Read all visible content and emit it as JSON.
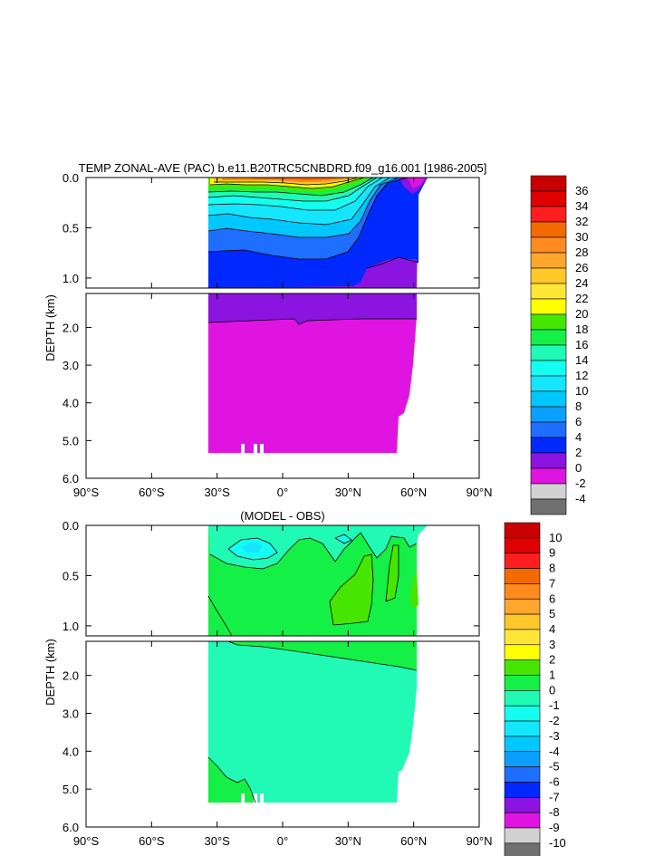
{
  "chart_data": [
    {
      "type": "contour",
      "title": "TEMP ZONAL-AVE (PAC) b.e11.B20TRC5CNBDRD.f09_g16.001 [1986-2005]",
      "xlabel": "",
      "ylabel": "DEPTH (km)",
      "x_ticks": [
        "90°S",
        "60°S",
        "30°S",
        "0°",
        "30°N",
        "60°N",
        "90°N"
      ],
      "x_range": [
        -90,
        90
      ],
      "upper_panel": {
        "y_range_km": [
          0.0,
          1.1
        ],
        "y_ticks": [
          "0.0",
          "0.5",
          "1.0"
        ]
      },
      "lower_panel": {
        "y_range_km": [
          1.1,
          6.0
        ],
        "y_ticks": [
          "2.0",
          "3.0",
          "4.0",
          "5.0",
          "6.0"
        ]
      },
      "colorbar_labels": [
        "36",
        "34",
        "32",
        "30",
        "28",
        "26",
        "24",
        "22",
        "20",
        "18",
        "16",
        "14",
        "12",
        "10",
        "8",
        "6",
        "4",
        "2",
        "0",
        "-2",
        "-4"
      ],
      "colorbar_colors": [
        "#c80000",
        "#e00000",
        "#ff1e1e",
        "#f26a00",
        "#ff8a1e",
        "#ffa62e",
        "#ffc828",
        "#ffe636",
        "#ffff00",
        "#46e600",
        "#14f046",
        "#20fab4",
        "#14fff0",
        "#14e6ff",
        "#00c8ff",
        "#0aa0ff",
        "#1e6eff",
        "#0028ff",
        "#8c14e0",
        "#e014e0",
        "#d2d2d2",
        "#707070"
      ]
    },
    {
      "type": "contour",
      "title": "(MODEL - OBS)",
      "xlabel": "",
      "ylabel": "DEPTH (km)",
      "x_ticks": [
        "90°S",
        "60°S",
        "30°S",
        "0°",
        "30°N",
        "60°N",
        "90°N"
      ],
      "x_range": [
        -90,
        90
      ],
      "upper_panel": {
        "y_range_km": [
          0.0,
          1.1
        ],
        "y_ticks": [
          "0.0",
          "0.5",
          "1.0"
        ]
      },
      "lower_panel": {
        "y_range_km": [
          1.1,
          6.0
        ],
        "y_ticks": [
          "2.0",
          "3.0",
          "4.0",
          "5.0",
          "6.0"
        ]
      },
      "colorbar_labels": [
        "10",
        "9",
        "8",
        "7",
        "6",
        "5",
        "4",
        "3",
        "2",
        "1",
        "0",
        "-1",
        "-2",
        "-3",
        "-4",
        "-5",
        "-6",
        "-7",
        "-8",
        "-9",
        "-10"
      ],
      "colorbar_colors": [
        "#c80000",
        "#e00000",
        "#ff1e1e",
        "#f26a00",
        "#ff8a1e",
        "#ffa62e",
        "#ffc828",
        "#ffe636",
        "#ffff00",
        "#46e600",
        "#14f046",
        "#20fab4",
        "#14fff0",
        "#14e6ff",
        "#00c8ff",
        "#0aa0ff",
        "#1e6eff",
        "#0028ff",
        "#8c14e0",
        "#e014e0",
        "#d2d2d2",
        "#707070"
      ]
    }
  ]
}
